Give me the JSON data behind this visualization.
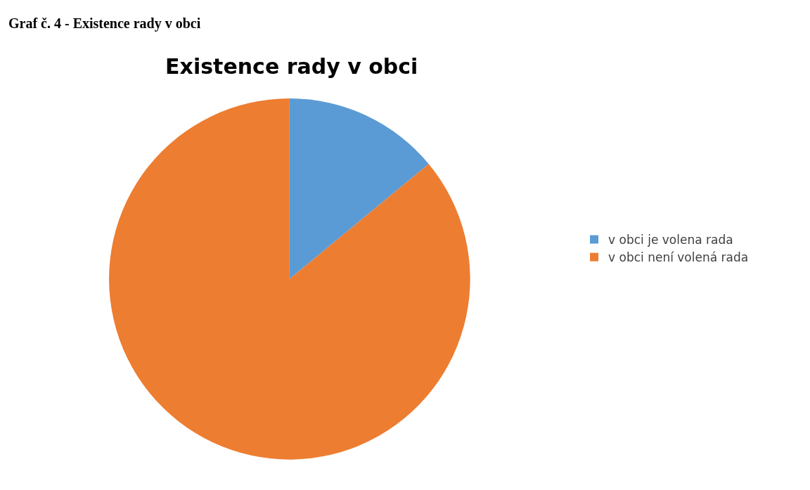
{
  "chart_data": {
    "type": "pie",
    "title": "Existence rady v obci",
    "annotations": [
      "Graf č. 4 - Existence rady v obci"
    ],
    "categories": [
      "v obci je volena rada",
      "v obci není volená rada"
    ],
    "values": [
      14,
      86
    ],
    "colors": [
      "#5b9bd5",
      "#ed7d31"
    ],
    "legend": "right"
  }
}
